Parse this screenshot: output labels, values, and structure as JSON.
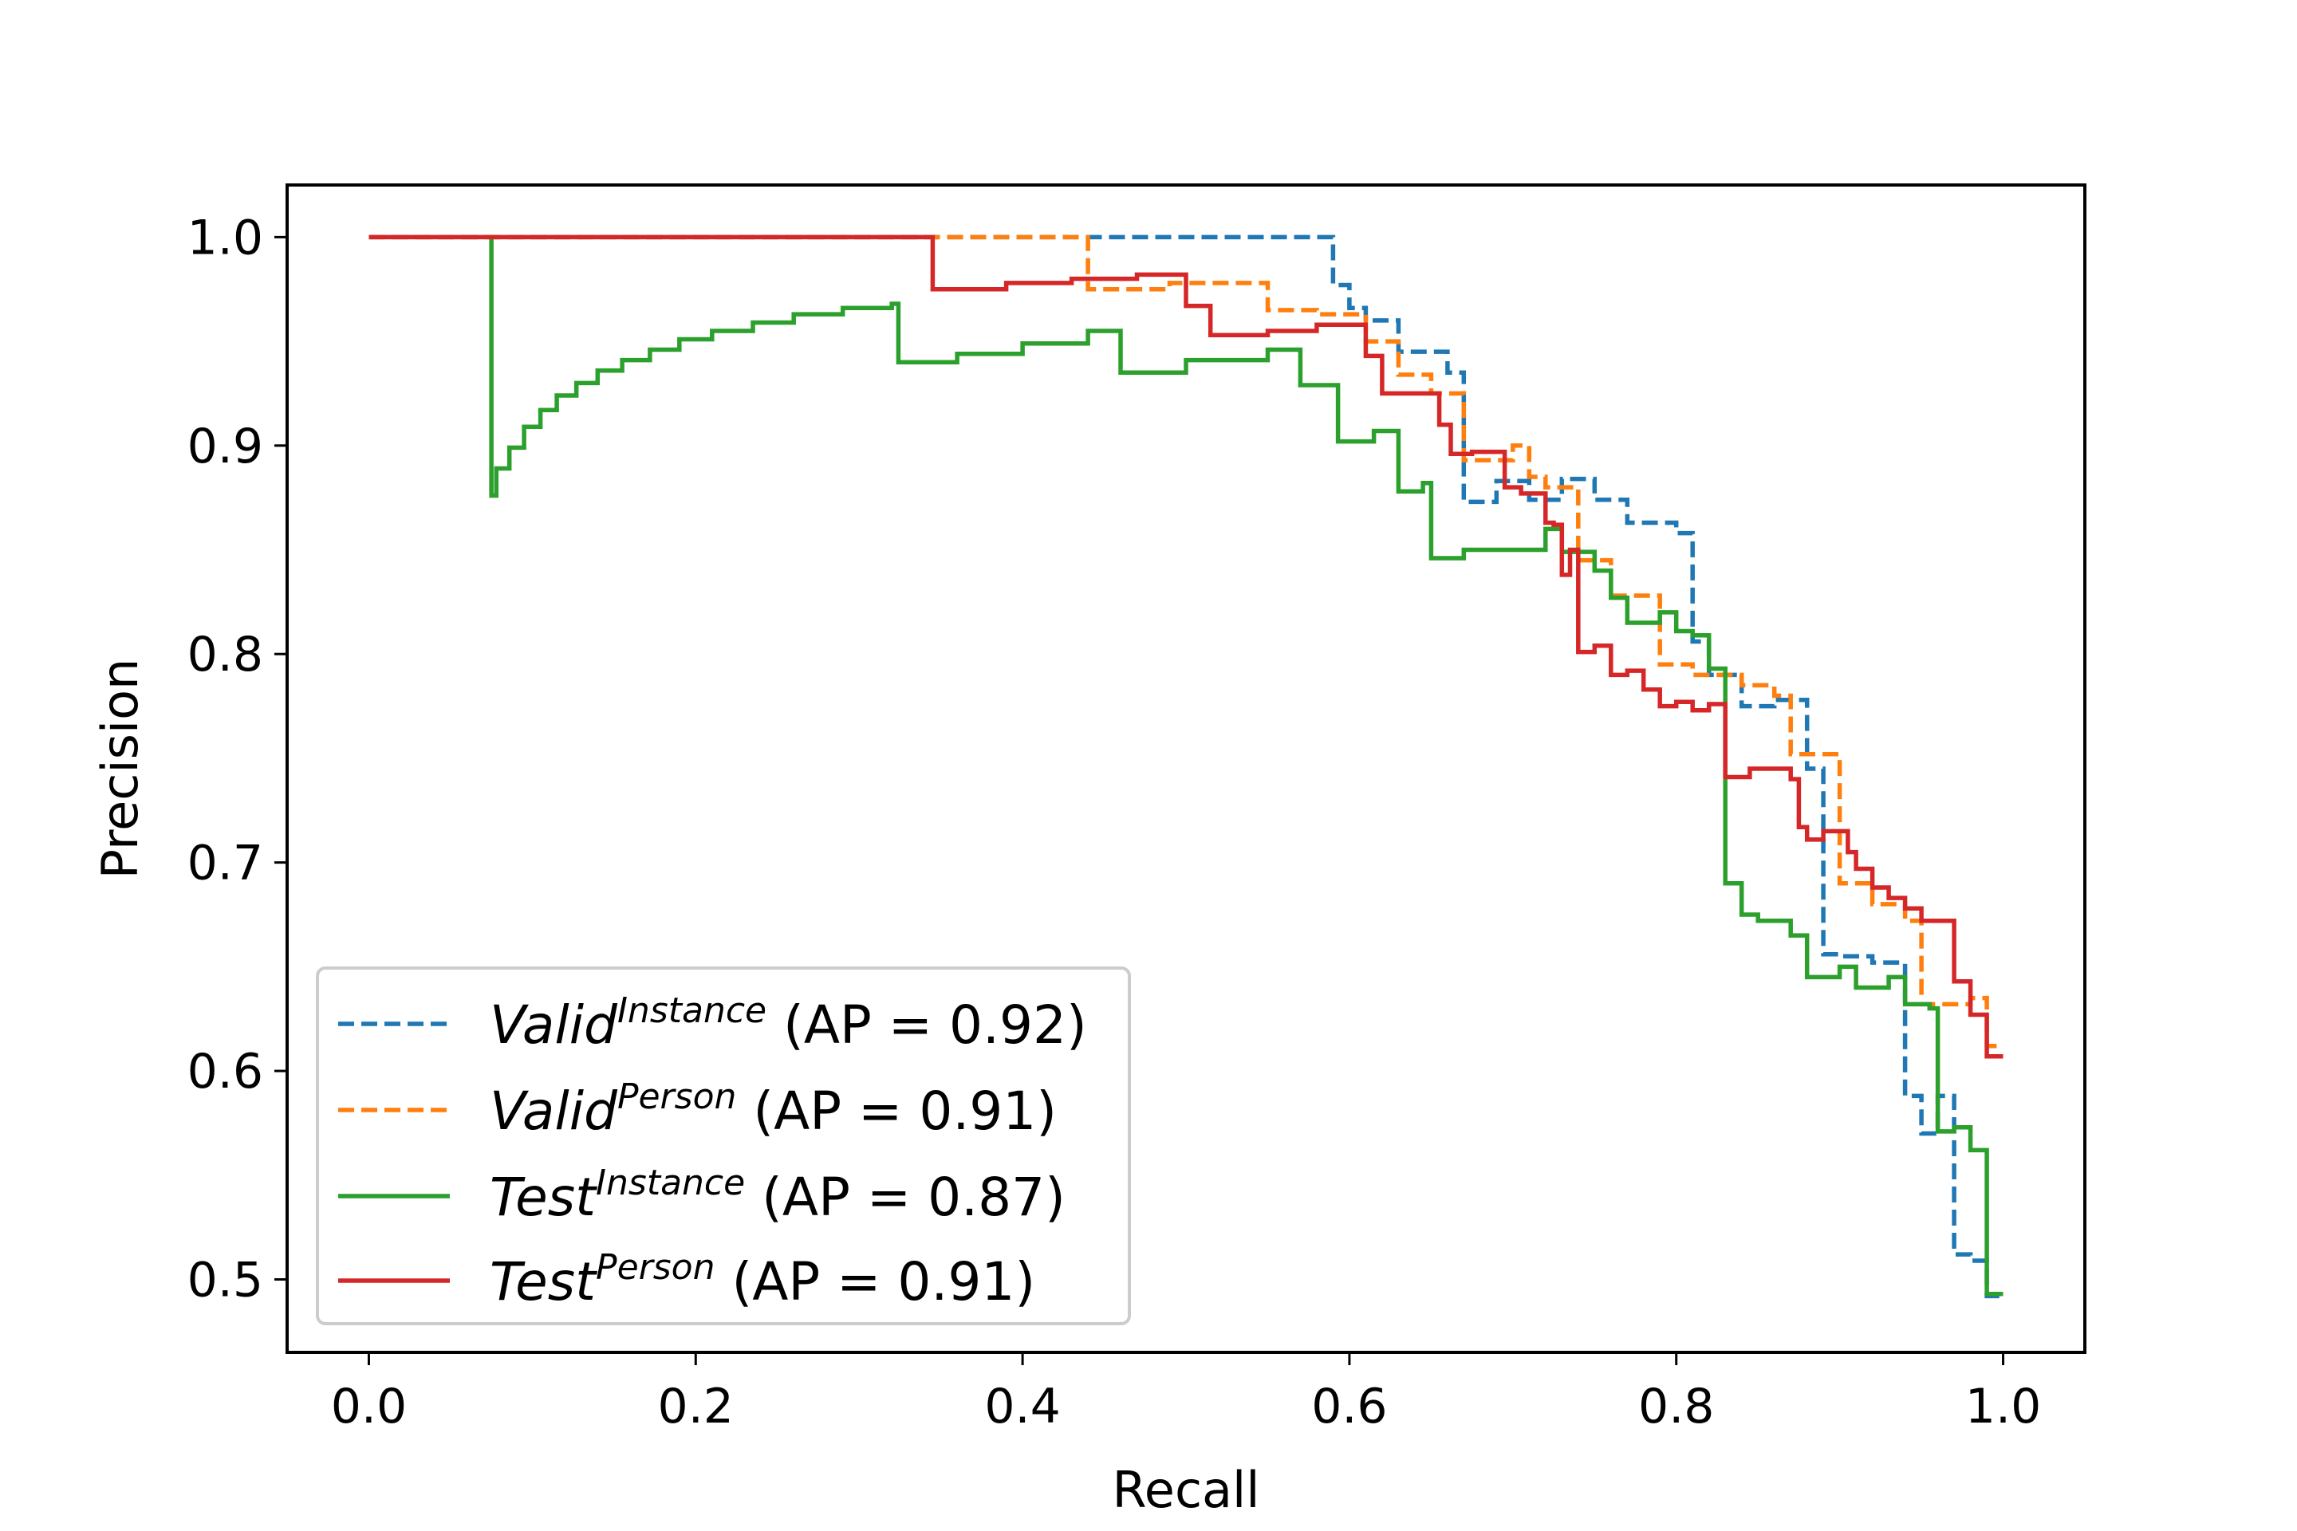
{
  "chart_data": {
    "type": "line",
    "step": true,
    "title": "",
    "xlabel": "Recall",
    "ylabel": "Precision",
    "xlim": [
      -0.05,
      1.05
    ],
    "ylim": [
      0.465,
      1.025
    ],
    "xticks": [
      0.0,
      0.2,
      0.4,
      0.6,
      0.8,
      1.0
    ],
    "yticks": [
      0.5,
      0.6,
      0.7,
      0.8,
      0.9,
      1.0
    ],
    "xtick_labels": [
      "0.0",
      "0.2",
      "0.4",
      "0.6",
      "0.8",
      "1.0"
    ],
    "ytick_labels": [
      "0.5",
      "0.6",
      "0.7",
      "0.8",
      "0.9",
      "1.0"
    ],
    "grid": false,
    "legend_position": "lower-left",
    "series": [
      {
        "name": "Valid",
        "superscript": "Instance",
        "suffix": "(AP = 0.92)",
        "color": "#1f77b4",
        "dash": "dashed",
        "points": [
          [
            0.0,
            1.0
          ],
          [
            0.59,
            1.0
          ],
          [
            0.59,
            0.977
          ],
          [
            0.6,
            0.977
          ],
          [
            0.6,
            0.966
          ],
          [
            0.61,
            0.966
          ],
          [
            0.61,
            0.96
          ],
          [
            0.63,
            0.96
          ],
          [
            0.63,
            0.945
          ],
          [
            0.66,
            0.945
          ],
          [
            0.66,
            0.935
          ],
          [
            0.67,
            0.935
          ],
          [
            0.67,
            0.873
          ],
          [
            0.69,
            0.873
          ],
          [
            0.69,
            0.883
          ],
          [
            0.71,
            0.883
          ],
          [
            0.71,
            0.874
          ],
          [
            0.73,
            0.874
          ],
          [
            0.73,
            0.884
          ],
          [
            0.75,
            0.884
          ],
          [
            0.75,
            0.874
          ],
          [
            0.77,
            0.874
          ],
          [
            0.77,
            0.863
          ],
          [
            0.8,
            0.863
          ],
          [
            0.8,
            0.858
          ],
          [
            0.81,
            0.858
          ],
          [
            0.81,
            0.806
          ],
          [
            0.82,
            0.806
          ],
          [
            0.82,
            0.79
          ],
          [
            0.84,
            0.79
          ],
          [
            0.84,
            0.775
          ],
          [
            0.86,
            0.775
          ],
          [
            0.86,
            0.778
          ],
          [
            0.88,
            0.778
          ],
          [
            0.88,
            0.745
          ],
          [
            0.89,
            0.745
          ],
          [
            0.89,
            0.656
          ],
          [
            0.9,
            0.656
          ],
          [
            0.9,
            0.655
          ],
          [
            0.92,
            0.655
          ],
          [
            0.92,
            0.652
          ],
          [
            0.94,
            0.652
          ],
          [
            0.94,
            0.588
          ],
          [
            0.95,
            0.588
          ],
          [
            0.95,
            0.57
          ],
          [
            0.96,
            0.57
          ],
          [
            0.96,
            0.588
          ],
          [
            0.97,
            0.588
          ],
          [
            0.97,
            0.512
          ],
          [
            0.98,
            0.512
          ],
          [
            0.98,
            0.509
          ],
          [
            0.99,
            0.509
          ],
          [
            0.99,
            0.492
          ],
          [
            1.0,
            0.492
          ]
        ]
      },
      {
        "name": "Valid",
        "superscript": "Person",
        "suffix": "(AP = 0.91)",
        "color": "#ff7f0e",
        "dash": "dashed",
        "points": [
          [
            0.0,
            1.0
          ],
          [
            0.44,
            1.0
          ],
          [
            0.44,
            0.975
          ],
          [
            0.49,
            0.975
          ],
          [
            0.49,
            0.978
          ],
          [
            0.55,
            0.978
          ],
          [
            0.55,
            0.965
          ],
          [
            0.58,
            0.965
          ],
          [
            0.58,
            0.963
          ],
          [
            0.61,
            0.963
          ],
          [
            0.61,
            0.95
          ],
          [
            0.63,
            0.95
          ],
          [
            0.63,
            0.934
          ],
          [
            0.65,
            0.934
          ],
          [
            0.65,
            0.925
          ],
          [
            0.67,
            0.925
          ],
          [
            0.67,
            0.893
          ],
          [
            0.7,
            0.893
          ],
          [
            0.7,
            0.9
          ],
          [
            0.71,
            0.9
          ],
          [
            0.71,
            0.885
          ],
          [
            0.72,
            0.885
          ],
          [
            0.72,
            0.88
          ],
          [
            0.74,
            0.88
          ],
          [
            0.74,
            0.845
          ],
          [
            0.76,
            0.845
          ],
          [
            0.76,
            0.828
          ],
          [
            0.79,
            0.828
          ],
          [
            0.79,
            0.795
          ],
          [
            0.81,
            0.795
          ],
          [
            0.81,
            0.79
          ],
          [
            0.84,
            0.79
          ],
          [
            0.84,
            0.785
          ],
          [
            0.86,
            0.785
          ],
          [
            0.86,
            0.78
          ],
          [
            0.87,
            0.78
          ],
          [
            0.87,
            0.752
          ],
          [
            0.9,
            0.752
          ],
          [
            0.9,
            0.69
          ],
          [
            0.92,
            0.69
          ],
          [
            0.92,
            0.68
          ],
          [
            0.94,
            0.68
          ],
          [
            0.94,
            0.672
          ],
          [
            0.95,
            0.672
          ],
          [
            0.95,
            0.632
          ],
          [
            0.98,
            0.632
          ],
          [
            0.98,
            0.635
          ],
          [
            0.99,
            0.635
          ],
          [
            0.99,
            0.612
          ],
          [
            1.0,
            0.612
          ]
        ]
      },
      {
        "name": "Test",
        "superscript": "Instance",
        "suffix": "(AP = 0.87)",
        "color": "#2ca02c",
        "dash": "solid",
        "points": [
          [
            0.075,
            1.0
          ],
          [
            0.075,
            0.876
          ],
          [
            0.078,
            0.876
          ],
          [
            0.078,
            0.889
          ],
          [
            0.086,
            0.889
          ],
          [
            0.086,
            0.899
          ],
          [
            0.095,
            0.899
          ],
          [
            0.095,
            0.909
          ],
          [
            0.105,
            0.909
          ],
          [
            0.105,
            0.917
          ],
          [
            0.115,
            0.917
          ],
          [
            0.115,
            0.924
          ],
          [
            0.127,
            0.924
          ],
          [
            0.127,
            0.93
          ],
          [
            0.14,
            0.93
          ],
          [
            0.14,
            0.936
          ],
          [
            0.155,
            0.936
          ],
          [
            0.155,
            0.941
          ],
          [
            0.172,
            0.941
          ],
          [
            0.172,
            0.946
          ],
          [
            0.19,
            0.946
          ],
          [
            0.19,
            0.951
          ],
          [
            0.21,
            0.951
          ],
          [
            0.21,
            0.955
          ],
          [
            0.235,
            0.955
          ],
          [
            0.235,
            0.959
          ],
          [
            0.26,
            0.959
          ],
          [
            0.26,
            0.963
          ],
          [
            0.29,
            0.963
          ],
          [
            0.29,
            0.966
          ],
          [
            0.32,
            0.966
          ],
          [
            0.32,
            0.968
          ],
          [
            0.324,
            0.968
          ],
          [
            0.324,
            0.94
          ],
          [
            0.36,
            0.94
          ],
          [
            0.36,
            0.944
          ],
          [
            0.4,
            0.944
          ],
          [
            0.4,
            0.949
          ],
          [
            0.44,
            0.949
          ],
          [
            0.44,
            0.955
          ],
          [
            0.46,
            0.955
          ],
          [
            0.46,
            0.935
          ],
          [
            0.5,
            0.935
          ],
          [
            0.5,
            0.941
          ],
          [
            0.55,
            0.941
          ],
          [
            0.55,
            0.946
          ],
          [
            0.57,
            0.946
          ],
          [
            0.57,
            0.929
          ],
          [
            0.593,
            0.929
          ],
          [
            0.593,
            0.902
          ],
          [
            0.615,
            0.902
          ],
          [
            0.615,
            0.907
          ],
          [
            0.63,
            0.907
          ],
          [
            0.63,
            0.878
          ],
          [
            0.645,
            0.878
          ],
          [
            0.645,
            0.882
          ],
          [
            0.65,
            0.882
          ],
          [
            0.65,
            0.846
          ],
          [
            0.67,
            0.846
          ],
          [
            0.67,
            0.85
          ],
          [
            0.72,
            0.85
          ],
          [
            0.72,
            0.86
          ],
          [
            0.73,
            0.86
          ],
          [
            0.73,
            0.849
          ],
          [
            0.75,
            0.849
          ],
          [
            0.75,
            0.84
          ],
          [
            0.76,
            0.84
          ],
          [
            0.76,
            0.827
          ],
          [
            0.77,
            0.827
          ],
          [
            0.77,
            0.815
          ],
          [
            0.79,
            0.815
          ],
          [
            0.79,
            0.82
          ],
          [
            0.8,
            0.82
          ],
          [
            0.8,
            0.811
          ],
          [
            0.81,
            0.811
          ],
          [
            0.81,
            0.809
          ],
          [
            0.82,
            0.809
          ],
          [
            0.82,
            0.793
          ],
          [
            0.83,
            0.793
          ],
          [
            0.83,
            0.69
          ],
          [
            0.84,
            0.69
          ],
          [
            0.84,
            0.675
          ],
          [
            0.85,
            0.675
          ],
          [
            0.85,
            0.672
          ],
          [
            0.87,
            0.672
          ],
          [
            0.87,
            0.665
          ],
          [
            0.88,
            0.665
          ],
          [
            0.88,
            0.645
          ],
          [
            0.9,
            0.645
          ],
          [
            0.9,
            0.65
          ],
          [
            0.91,
            0.65
          ],
          [
            0.91,
            0.64
          ],
          [
            0.93,
            0.64
          ],
          [
            0.93,
            0.645
          ],
          [
            0.94,
            0.645
          ],
          [
            0.94,
            0.632
          ],
          [
            0.955,
            0.632
          ],
          [
            0.955,
            0.63
          ],
          [
            0.96,
            0.63
          ],
          [
            0.96,
            0.571
          ],
          [
            0.97,
            0.571
          ],
          [
            0.97,
            0.573
          ],
          [
            0.98,
            0.573
          ],
          [
            0.98,
            0.562
          ],
          [
            0.99,
            0.562
          ],
          [
            0.99,
            0.493
          ],
          [
            1.0,
            0.493
          ]
        ]
      },
      {
        "name": "Test",
        "superscript": "Person",
        "suffix": "(AP = 0.91)",
        "color": "#d62728",
        "dash": "solid",
        "points": [
          [
            0.0,
            1.0
          ],
          [
            0.345,
            1.0
          ],
          [
            0.345,
            0.975
          ],
          [
            0.39,
            0.975
          ],
          [
            0.39,
            0.978
          ],
          [
            0.43,
            0.978
          ],
          [
            0.43,
            0.98
          ],
          [
            0.47,
            0.98
          ],
          [
            0.47,
            0.982
          ],
          [
            0.5,
            0.982
          ],
          [
            0.5,
            0.967
          ],
          [
            0.515,
            0.967
          ],
          [
            0.515,
            0.953
          ],
          [
            0.55,
            0.953
          ],
          [
            0.55,
            0.955
          ],
          [
            0.58,
            0.955
          ],
          [
            0.58,
            0.958
          ],
          [
            0.61,
            0.958
          ],
          [
            0.61,
            0.943
          ],
          [
            0.62,
            0.943
          ],
          [
            0.62,
            0.925
          ],
          [
            0.655,
            0.925
          ],
          [
            0.655,
            0.91
          ],
          [
            0.662,
            0.91
          ],
          [
            0.662,
            0.896
          ],
          [
            0.675,
            0.896
          ],
          [
            0.675,
            0.897
          ],
          [
            0.695,
            0.897
          ],
          [
            0.695,
            0.88
          ],
          [
            0.705,
            0.88
          ],
          [
            0.705,
            0.877
          ],
          [
            0.72,
            0.877
          ],
          [
            0.72,
            0.863
          ],
          [
            0.725,
            0.863
          ],
          [
            0.725,
            0.862
          ],
          [
            0.73,
            0.862
          ],
          [
            0.73,
            0.838
          ],
          [
            0.735,
            0.838
          ],
          [
            0.735,
            0.85
          ],
          [
            0.74,
            0.85
          ],
          [
            0.74,
            0.801
          ],
          [
            0.75,
            0.801
          ],
          [
            0.75,
            0.804
          ],
          [
            0.76,
            0.804
          ],
          [
            0.76,
            0.79
          ],
          [
            0.77,
            0.79
          ],
          [
            0.77,
            0.792
          ],
          [
            0.78,
            0.792
          ],
          [
            0.78,
            0.783
          ],
          [
            0.79,
            0.783
          ],
          [
            0.79,
            0.775
          ],
          [
            0.8,
            0.775
          ],
          [
            0.8,
            0.777
          ],
          [
            0.81,
            0.777
          ],
          [
            0.81,
            0.773
          ],
          [
            0.82,
            0.773
          ],
          [
            0.82,
            0.776
          ],
          [
            0.83,
            0.776
          ],
          [
            0.83,
            0.741
          ],
          [
            0.845,
            0.741
          ],
          [
            0.845,
            0.745
          ],
          [
            0.87,
            0.745
          ],
          [
            0.87,
            0.74
          ],
          [
            0.875,
            0.74
          ],
          [
            0.875,
            0.717
          ],
          [
            0.88,
            0.717
          ],
          [
            0.88,
            0.711
          ],
          [
            0.89,
            0.711
          ],
          [
            0.89,
            0.715
          ],
          [
            0.905,
            0.715
          ],
          [
            0.905,
            0.705
          ],
          [
            0.91,
            0.705
          ],
          [
            0.91,
            0.697
          ],
          [
            0.92,
            0.697
          ],
          [
            0.92,
            0.688
          ],
          [
            0.93,
            0.688
          ],
          [
            0.93,
            0.683
          ],
          [
            0.94,
            0.683
          ],
          [
            0.94,
            0.678
          ],
          [
            0.95,
            0.678
          ],
          [
            0.95,
            0.672
          ],
          [
            0.97,
            0.672
          ],
          [
            0.97,
            0.643
          ],
          [
            0.98,
            0.643
          ],
          [
            0.98,
            0.627
          ],
          [
            0.99,
            0.627
          ],
          [
            0.99,
            0.607
          ],
          [
            1.0,
            0.607
          ]
        ]
      }
    ]
  }
}
